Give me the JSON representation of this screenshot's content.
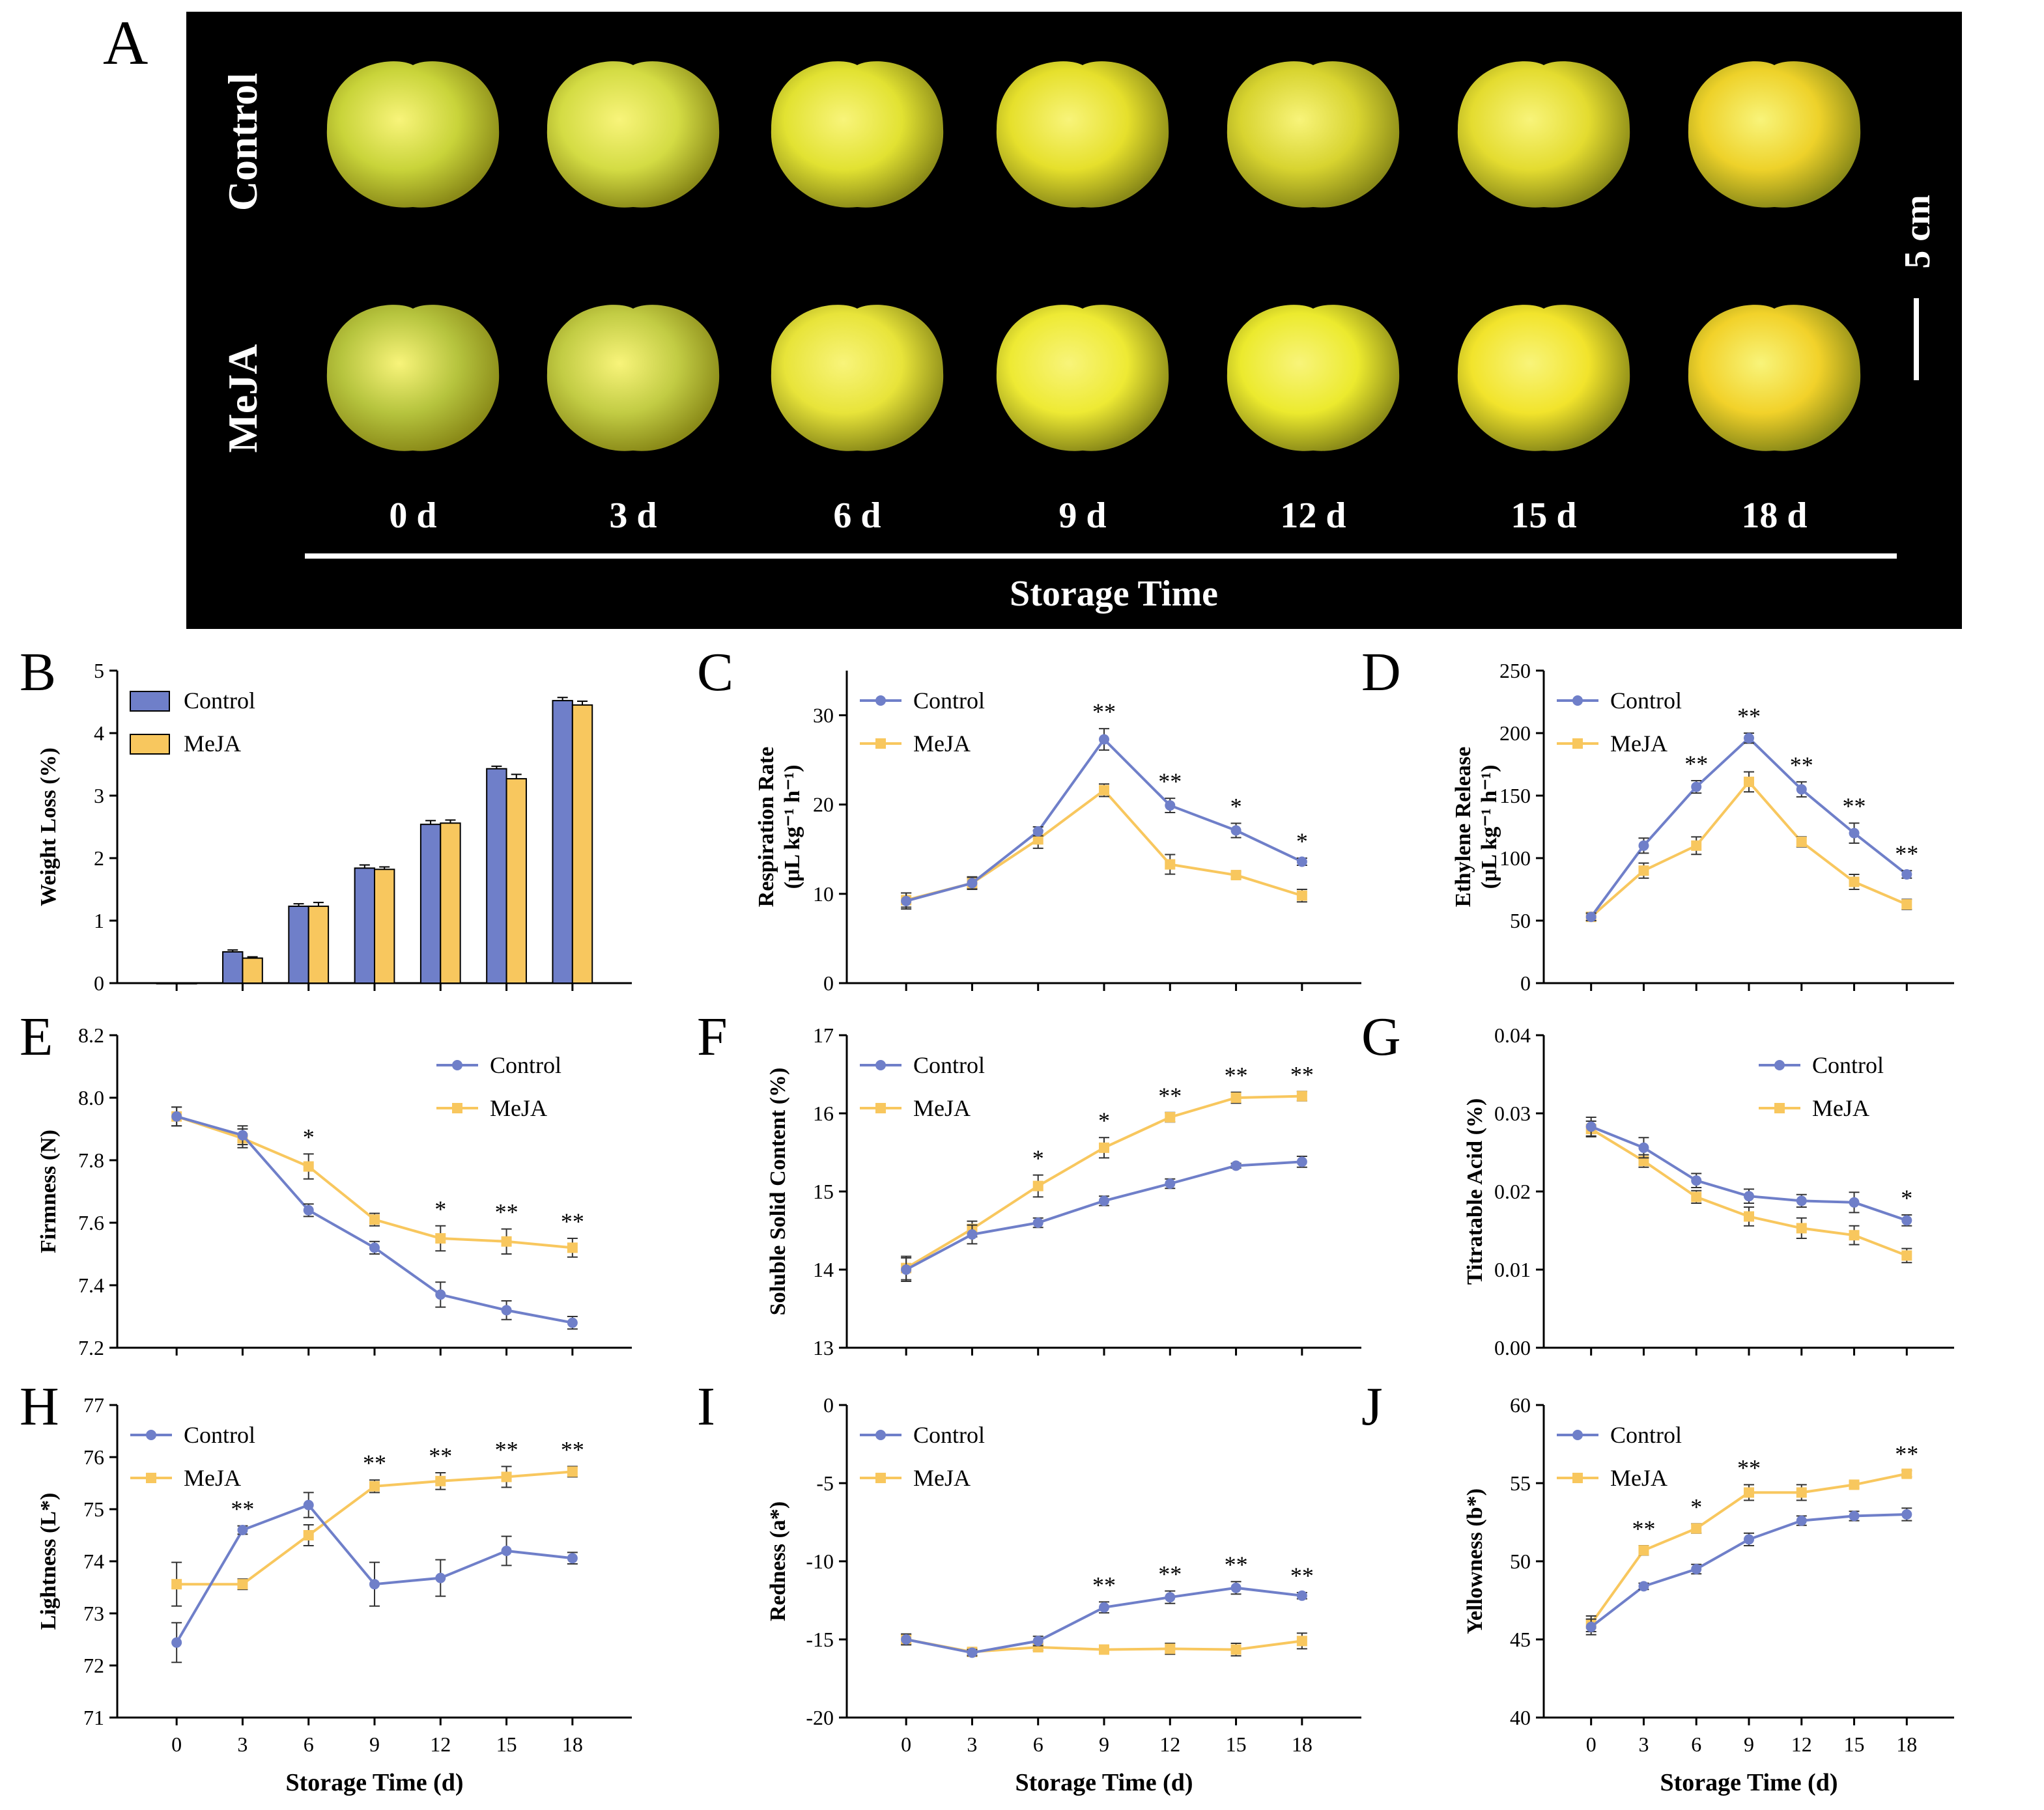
{
  "panel_a": {
    "letter": "A",
    "row_labels": [
      "Control",
      "MeJA"
    ],
    "day_labels": [
      "0 d",
      "3 d",
      "6 d",
      "9 d",
      "12 d",
      "15 d",
      "18 d"
    ],
    "axis_title": "Storage Time",
    "scale_label": "5 cm",
    "apple_colors": {
      "control": [
        "#c9d43a",
        "#d4dc44",
        "#e2e232",
        "#e6e02c",
        "#d8d430",
        "#e4dc30",
        "#eed22a"
      ],
      "meja": [
        "#b6c43e",
        "#c2cc44",
        "#e8e43a",
        "#eeea34",
        "#ecea2e",
        "#f2e42c",
        "#f2d22a"
      ]
    }
  },
  "colors": {
    "control": "#6f7fc9",
    "meja": "#f8c75e",
    "scale_bg": "#000000"
  },
  "chart_data": [
    {
      "id": "B",
      "letter": "B",
      "type": "bar",
      "ylabel": "Weight Loss (%)",
      "xlabel": "",
      "categories": [
        "0",
        "3",
        "6",
        "9",
        "12",
        "15",
        "18"
      ],
      "show_x_tick_labels": false,
      "ylim": [
        0,
        5
      ],
      "yticks": [
        0,
        1,
        2,
        3,
        4,
        5
      ],
      "ytick_labels": [
        "0",
        "1",
        "2",
        "3",
        "4",
        "5"
      ],
      "legend": "top-left",
      "series": [
        {
          "name": "Control",
          "values": [
            0,
            0.5,
            1.23,
            1.84,
            2.54,
            3.43,
            4.52
          ],
          "err": [
            0,
            0.03,
            0.04,
            0.05,
            0.06,
            0.04,
            0.05
          ]
        },
        {
          "name": "MeJA",
          "values": [
            0,
            0.4,
            1.23,
            1.82,
            2.56,
            3.27,
            4.45
          ],
          "err": [
            0,
            0.02,
            0.06,
            0.04,
            0.05,
            0.07,
            0.06
          ]
        }
      ]
    },
    {
      "id": "C",
      "letter": "C",
      "type": "line",
      "ylabel": "Respiration Rate",
      "ylabel2": "(μL kg⁻¹ h⁻¹)",
      "xlabel": "",
      "x": [
        0,
        3,
        6,
        9,
        12,
        15,
        18
      ],
      "show_x_tick_labels": false,
      "ylim": [
        0,
        35
      ],
      "yticks": [
        0,
        10,
        20,
        30
      ],
      "ytick_labels": [
        "0",
        "10",
        "20",
        "30"
      ],
      "legend": "top-left",
      "series": [
        {
          "name": "Control",
          "values": [
            9.2,
            11.2,
            17.0,
            27.3,
            19.9,
            17.1,
            13.6
          ],
          "err": [
            0.9,
            0.7,
            0.5,
            1.2,
            0.8,
            0.8,
            0.4
          ]
        },
        {
          "name": "MeJA",
          "values": [
            9.3,
            11.2,
            16.1,
            21.6,
            13.3,
            12.1,
            9.8
          ],
          "err": [
            0.8,
            0.6,
            1.0,
            0.7,
            1.1,
            0.4,
            0.7
          ]
        }
      ],
      "annotations": [
        {
          "x": 9,
          "text": "**"
        },
        {
          "x": 12,
          "text": "**"
        },
        {
          "x": 15,
          "text": "*"
        },
        {
          "x": 18,
          "text": "*"
        }
      ]
    },
    {
      "id": "D",
      "letter": "D",
      "type": "line",
      "ylabel": "Ethylene Release",
      "ylabel2": "(μL kg⁻¹ h⁻¹)",
      "xlabel": "",
      "x": [
        0,
        3,
        6,
        9,
        12,
        15,
        18
      ],
      "show_x_tick_labels": false,
      "ylim": [
        0,
        250
      ],
      "yticks": [
        0,
        50,
        100,
        150,
        200,
        250
      ],
      "ytick_labels": [
        "0",
        "50",
        "100",
        "150",
        "200",
        "250"
      ],
      "legend": "top-left",
      "series": [
        {
          "name": "Control",
          "values": [
            53,
            110,
            157,
            196,
            155,
            120,
            87
          ],
          "err": [
            3,
            6,
            5,
            4,
            6,
            8,
            3
          ]
        },
        {
          "name": "MeJA",
          "values": [
            53,
            90,
            110,
            161,
            113,
            81,
            63
          ],
          "err": [
            3,
            6,
            7,
            8,
            4,
            6,
            4
          ]
        }
      ],
      "annotations": [
        {
          "x": 6,
          "text": "**"
        },
        {
          "x": 9,
          "text": "**"
        },
        {
          "x": 12,
          "text": "**"
        },
        {
          "x": 15,
          "text": "**"
        },
        {
          "x": 18,
          "text": "**"
        }
      ]
    },
    {
      "id": "E",
      "letter": "E",
      "type": "line",
      "ylabel": "Firmness (N)",
      "xlabel": "",
      "x": [
        0,
        3,
        6,
        9,
        12,
        15,
        18
      ],
      "show_x_tick_labels": false,
      "ylim": [
        7.2,
        8.2
      ],
      "yticks": [
        7.2,
        7.4,
        7.6,
        7.8,
        8.0,
        8.2
      ],
      "ytick_labels": [
        "7.2",
        "7.4",
        "7.6",
        "7.8",
        "8.0",
        "8.2"
      ],
      "legend": "top-right",
      "series": [
        {
          "name": "Control",
          "values": [
            7.94,
            7.88,
            7.64,
            7.52,
            7.37,
            7.32,
            7.28
          ],
          "err": [
            0.03,
            0.03,
            0.02,
            0.02,
            0.04,
            0.03,
            0.02
          ]
        },
        {
          "name": "MeJA",
          "values": [
            7.94,
            7.87,
            7.78,
            7.61,
            7.55,
            7.54,
            7.52
          ],
          "err": [
            0.03,
            0.03,
            0.04,
            0.02,
            0.04,
            0.04,
            0.03
          ]
        }
      ],
      "annotations": [
        {
          "x": 6,
          "text": "*"
        },
        {
          "x": 12,
          "text": "*"
        },
        {
          "x": 15,
          "text": "**"
        },
        {
          "x": 18,
          "text": "**"
        }
      ]
    },
    {
      "id": "F",
      "letter": "F",
      "type": "line",
      "ylabel": "Soluble Solid Content (%)",
      "xlabel": "",
      "x": [
        0,
        3,
        6,
        9,
        12,
        15,
        18
      ],
      "show_x_tick_labels": false,
      "ylim": [
        13,
        17
      ],
      "yticks": [
        13,
        14,
        15,
        16,
        17
      ],
      "ytick_labels": [
        "13",
        "14",
        "15",
        "16",
        "17"
      ],
      "legend": "top-left",
      "series": [
        {
          "name": "Control",
          "values": [
            14.0,
            14.45,
            14.6,
            14.88,
            15.1,
            15.33,
            15.38
          ],
          "err": [
            0.15,
            0.12,
            0.06,
            0.06,
            0.06,
            0.03,
            0.07
          ]
        },
        {
          "name": "MeJA",
          "values": [
            14.02,
            14.52,
            15.07,
            15.56,
            15.95,
            16.2,
            16.22
          ],
          "err": [
            0.15,
            0.1,
            0.14,
            0.13,
            0.06,
            0.07,
            0.06
          ]
        }
      ],
      "annotations": [
        {
          "x": 6,
          "text": "*"
        },
        {
          "x": 9,
          "text": "*"
        },
        {
          "x": 12,
          "text": "**"
        },
        {
          "x": 15,
          "text": "**"
        },
        {
          "x": 18,
          "text": "**"
        }
      ]
    },
    {
      "id": "G",
      "letter": "G",
      "type": "line",
      "ylabel": "Titratable Acid (%)",
      "xlabel": "",
      "x": [
        0,
        3,
        6,
        9,
        12,
        15,
        18
      ],
      "show_x_tick_labels": false,
      "ylim": [
        0,
        0.04
      ],
      "yticks": [
        0,
        0.01,
        0.02,
        0.03,
        0.04
      ],
      "ytick_labels": [
        "0.00",
        "0.01",
        "0.02",
        "0.03",
        "0.04"
      ],
      "legend": "top-right",
      "series": [
        {
          "name": "Control",
          "values": [
            0.0283,
            0.0256,
            0.0214,
            0.0194,
            0.0188,
            0.0186,
            0.0163
          ],
          "err": [
            0.0012,
            0.0013,
            0.0009,
            0.0009,
            0.0008,
            0.0013,
            0.0007
          ]
        },
        {
          "name": "MeJA",
          "values": [
            0.028,
            0.0239,
            0.0193,
            0.0168,
            0.0153,
            0.0144,
            0.0118
          ],
          "err": [
            0.001,
            0.0008,
            0.0008,
            0.0012,
            0.0013,
            0.0012,
            0.0009
          ]
        }
      ],
      "annotations": [
        {
          "x": 18,
          "text": "*"
        }
      ]
    },
    {
      "id": "H",
      "letter": "H",
      "type": "line",
      "ylabel": "Lightness (L*)",
      "xlabel": "Storage Time (d)",
      "x": [
        0,
        3,
        6,
        9,
        12,
        15,
        18
      ],
      "show_x_tick_labels": true,
      "ylim": [
        71,
        77
      ],
      "yticks": [
        71,
        72,
        73,
        74,
        75,
        76,
        77
      ],
      "ytick_labels": [
        "71",
        "72",
        "73",
        "74",
        "75",
        "76",
        "77"
      ],
      "legend": "top-left",
      "series": [
        {
          "name": "Control",
          "values": [
            72.44,
            74.6,
            75.08,
            73.56,
            73.68,
            74.2,
            74.06
          ],
          "err": [
            0.38,
            0.08,
            0.24,
            0.42,
            0.35,
            0.28,
            0.11
          ]
        },
        {
          "name": "MeJA",
          "values": [
            73.56,
            73.56,
            74.5,
            75.44,
            75.54,
            75.62,
            75.72
          ],
          "err": [
            0.42,
            0.1,
            0.2,
            0.12,
            0.16,
            0.2,
            0.1
          ]
        }
      ],
      "annotations": [
        {
          "x": 3,
          "text": "**"
        },
        {
          "x": 9,
          "text": "**"
        },
        {
          "x": 12,
          "text": "**"
        },
        {
          "x": 15,
          "text": "**"
        },
        {
          "x": 18,
          "text": "**"
        }
      ]
    },
    {
      "id": "I",
      "letter": "I",
      "type": "line",
      "ylabel": "Redness (a*)",
      "xlabel": "Storage Time (d)",
      "x": [
        0,
        3,
        6,
        9,
        12,
        15,
        18
      ],
      "show_x_tick_labels": true,
      "ylim": [
        -20,
        0
      ],
      "yticks": [
        -20,
        -15,
        -10,
        -5,
        0
      ],
      "ytick_labels": [
        "-20",
        "-15",
        "-10",
        "-5",
        "0"
      ],
      "legend": "top-left",
      "series": [
        {
          "name": "Control",
          "values": [
            -15.0,
            -15.85,
            -15.1,
            -12.95,
            -12.3,
            -11.7,
            -12.2
          ],
          "err": [
            0.35,
            0.2,
            0.3,
            0.35,
            0.4,
            0.4,
            0.2
          ]
        },
        {
          "name": "MeJA",
          "values": [
            -15.0,
            -15.8,
            -15.5,
            -15.65,
            -15.6,
            -15.65,
            -15.1
          ],
          "err": [
            0.3,
            0.2,
            0.2,
            0.2,
            0.35,
            0.4,
            0.5
          ]
        }
      ],
      "annotations": [
        {
          "x": 9,
          "text": "**"
        },
        {
          "x": 12,
          "text": "**"
        },
        {
          "x": 15,
          "text": "**"
        },
        {
          "x": 18,
          "text": "**"
        }
      ]
    },
    {
      "id": "J",
      "letter": "J",
      "type": "line",
      "ylabel": "Yellowness (b*)",
      "xlabel": "Storage Time (d)",
      "x": [
        0,
        3,
        6,
        9,
        12,
        15,
        18
      ],
      "show_x_tick_labels": true,
      "ylim": [
        40,
        60
      ],
      "yticks": [
        40,
        45,
        50,
        55,
        60
      ],
      "ytick_labels": [
        "40",
        "45",
        "50",
        "55",
        "60"
      ],
      "legend": "top-left",
      "series": [
        {
          "name": "Control",
          "values": [
            45.8,
            48.4,
            49.5,
            51.4,
            52.6,
            52.9,
            53.0
          ],
          "err": [
            0.5,
            0.2,
            0.3,
            0.4,
            0.3,
            0.3,
            0.4
          ]
        },
        {
          "name": "MeJA",
          "values": [
            46.0,
            50.7,
            52.1,
            54.4,
            54.4,
            54.9,
            55.6
          ],
          "err": [
            0.5,
            0.3,
            0.3,
            0.5,
            0.5,
            0.2,
            0.2
          ]
        }
      ],
      "annotations": [
        {
          "x": 3,
          "text": "**"
        },
        {
          "x": 6,
          "text": "*"
        },
        {
          "x": 9,
          "text": "**"
        },
        {
          "x": 18,
          "text": "**"
        }
      ]
    }
  ]
}
